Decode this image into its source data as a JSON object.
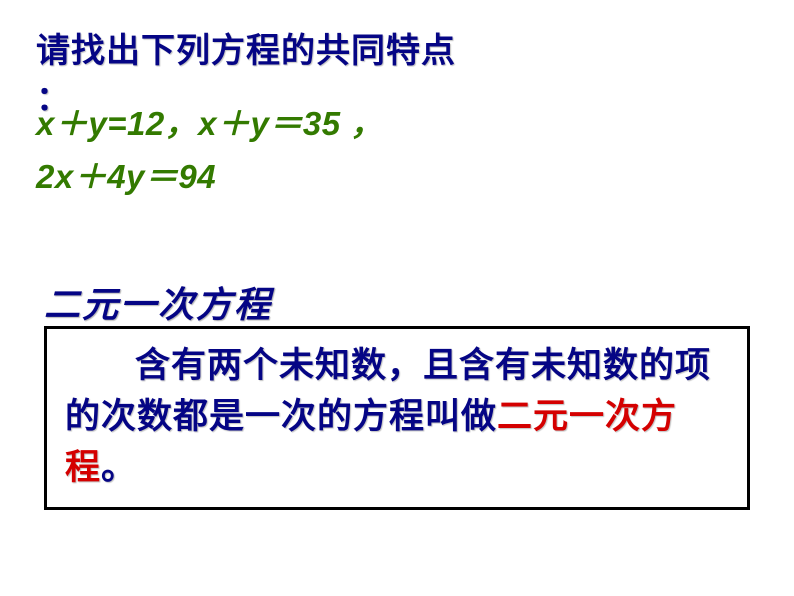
{
  "slide": {
    "heading_line1": "请找出下列方程的共同特点",
    "heading_line2": "：",
    "equations_line1": "x＋y=12，x＋y＝35 ，",
    "equations_line2": "2x＋4y＝94",
    "term_title": "二元一次方程",
    "definition_prefix": "含有两个未知数，且含有未知数的项的次数都是一次的方程叫做",
    "definition_highlight": "二元一次方程",
    "definition_suffix": "。"
  },
  "style": {
    "text_color_primary": "#050585",
    "text_color_equation": "#337a00",
    "text_color_highlight": "#d40000",
    "background_color": "#ffffff",
    "box_border_color": "#000000",
    "heading_fontsize": 34,
    "equation_fontsize": 33,
    "term_fontsize": 36,
    "definition_fontsize": 35
  }
}
